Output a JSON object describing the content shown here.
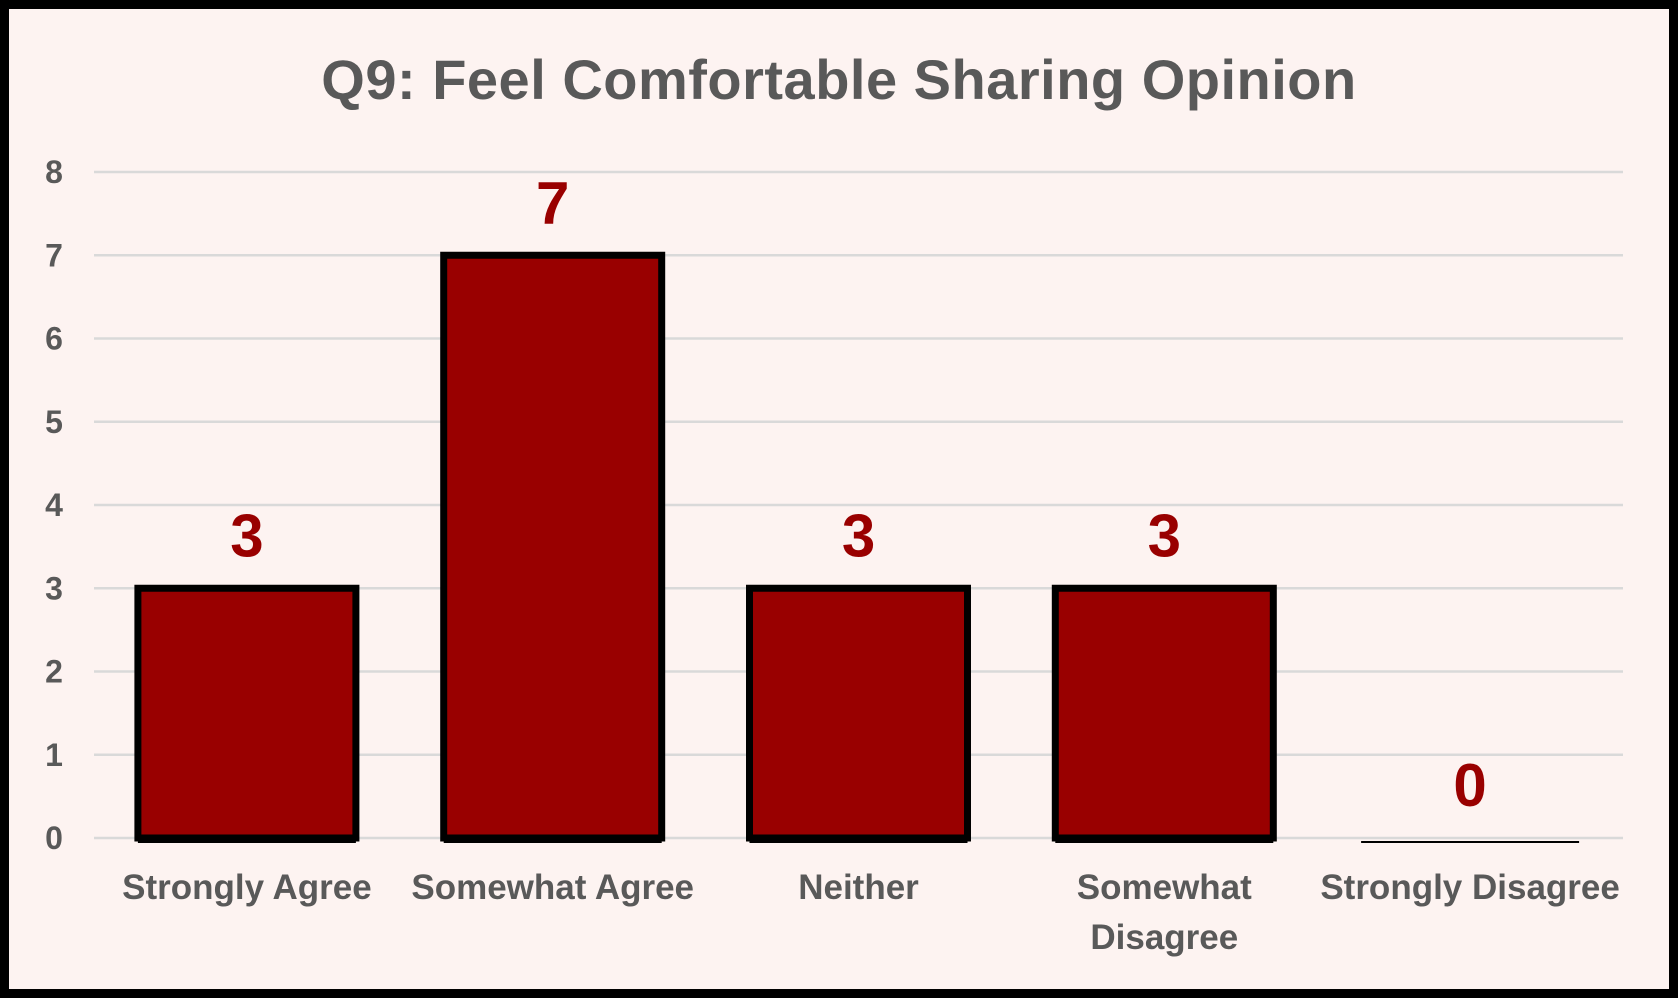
{
  "chart_data": {
    "type": "bar",
    "title": "Q9: Feel Comfortable Sharing Opinion",
    "xlabel": "",
    "ylabel": "",
    "categories": [
      "Strongly Agree",
      "Somewhat Agree",
      "Neither",
      "Somewhat Disagree",
      "Strongly Disagree"
    ],
    "values": [
      3,
      7,
      3,
      3,
      0
    ],
    "data_labels": [
      "3",
      "7",
      "3",
      "3",
      "0"
    ],
    "yticks": [
      "0",
      "1",
      "2",
      "3",
      "4",
      "5",
      "6",
      "7",
      "8"
    ],
    "ylim": [
      0,
      8
    ],
    "grid": true,
    "legend": "none",
    "colors": {
      "bar_fill": "#990000",
      "bar_border": "#000000",
      "data_label": "#990000",
      "text": "#595959",
      "gridline": "#d9d9d9",
      "background": "#fdf3f1"
    }
  }
}
